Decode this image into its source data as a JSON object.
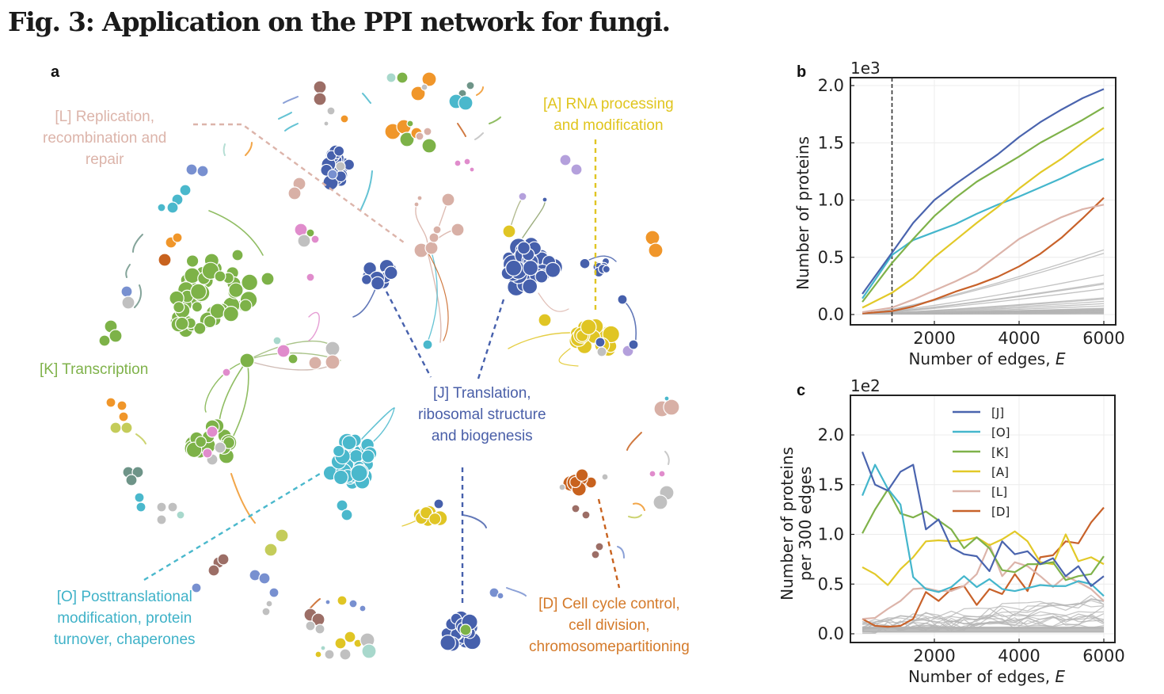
{
  "figure": {
    "title": "Fig. 3: Application on the PPI network for fungi."
  },
  "panel_a": {
    "letter": "a",
    "labels": {
      "L": {
        "lines": [
          "[L] Replication,",
          "recombination and",
          "repair"
        ],
        "color": "#dcb4aa"
      },
      "A": {
        "lines": [
          "[A] RNA processing",
          "and modification"
        ],
        "color": "#e0c51e"
      },
      "K": {
        "lines": [
          "[K] Transcription"
        ],
        "color": "#7fb24a"
      },
      "J": {
        "lines": [
          "[J] Translation,",
          "ribosomal structure",
          "and biogenesis"
        ],
        "color": "#4a5fa8"
      },
      "O": {
        "lines": [
          "[O] Posttranslational",
          "modification, protein",
          "turnover, chaperones"
        ],
        "color": "#3fb2c8"
      },
      "D": {
        "lines": [
          "[D] Cell cycle control,",
          "cell division,",
          "chromosomepartitioning"
        ],
        "color": "#d47a2a"
      }
    }
  },
  "panel_b": {
    "letter": "b"
  },
  "panel_c": {
    "letter": "c"
  },
  "chart_data": [
    {
      "panel": "b",
      "type": "line",
      "title": "",
      "xlabel": "Number of edges, E",
      "ylabel": "Number of proteins",
      "y_multiplier": "1e3",
      "xlim": [
        300,
        6000
      ],
      "ylim": [
        -0.1,
        2.05
      ],
      "xticks": [
        2000,
        4000,
        6000
      ],
      "yticks": [
        0.0,
        0.5,
        1.0,
        1.5,
        2.0
      ],
      "ytick_labels": [
        "0.0",
        "0.5",
        "1.0",
        "1.5",
        "2.0"
      ],
      "grid": true,
      "vline_dashed_x": 1000,
      "x": [
        300,
        1000,
        1500,
        2000,
        2500,
        3000,
        3500,
        4000,
        4500,
        5000,
        5500,
        6000
      ],
      "series": [
        {
          "name": "[J]",
          "color": "#4a64ae",
          "values": [
            0.18,
            0.54,
            0.8,
            1.0,
            1.14,
            1.27,
            1.4,
            1.55,
            1.68,
            1.79,
            1.89,
            1.97
          ]
        },
        {
          "name": "[K]",
          "color": "#7fb24a",
          "values": [
            0.11,
            0.45,
            0.66,
            0.86,
            1.02,
            1.16,
            1.27,
            1.38,
            1.5,
            1.6,
            1.7,
            1.81
          ]
        },
        {
          "name": "[A]",
          "color": "#e2c928",
          "values": [
            0.06,
            0.19,
            0.32,
            0.5,
            0.65,
            0.8,
            0.94,
            1.1,
            1.24,
            1.36,
            1.5,
            1.63
          ]
        },
        {
          "name": "[O]",
          "color": "#44b6cc",
          "values": [
            0.14,
            0.52,
            0.65,
            0.72,
            0.79,
            0.88,
            0.96,
            1.03,
            1.11,
            1.19,
            1.28,
            1.36
          ]
        },
        {
          "name": "[L]",
          "color": "#dcb4aa",
          "values": [
            0.02,
            0.06,
            0.13,
            0.21,
            0.29,
            0.38,
            0.52,
            0.66,
            0.76,
            0.85,
            0.92,
            0.96
          ]
        },
        {
          "name": "[D]",
          "color": "#c8622a",
          "values": [
            0.01,
            0.03,
            0.07,
            0.13,
            0.2,
            0.26,
            0.33,
            0.42,
            0.53,
            0.67,
            0.84,
            1.02
          ]
        }
      ],
      "background_series_color": "#b4b4b4",
      "background_series_endpoints": [
        0.56,
        0.53,
        0.34,
        0.27,
        0.26,
        0.22,
        0.14,
        0.13,
        0.11,
        0.09,
        0.07,
        0.05,
        0.03,
        0.01
      ]
    },
    {
      "panel": "c",
      "type": "line",
      "title": "",
      "xlabel": "Number of edges, E",
      "ylabel": "Number of proteins per 300 edges",
      "y_multiplier": "1e2",
      "xlim": [
        300,
        6000
      ],
      "ylim": [
        -0.1,
        2.4
      ],
      "xticks": [
        2000,
        4000,
        6000
      ],
      "yticks": [
        0.0,
        0.5,
        1.0,
        1.5,
        2.0
      ],
      "ytick_labels": [
        "0.0",
        "0.5",
        "1.0",
        "1.5",
        "2.0"
      ],
      "grid": true,
      "legend": [
        "[J]",
        "[O]",
        "[K]",
        "[A]",
        "[L]",
        "[D]"
      ],
      "legend_position": "upper center",
      "x": [
        300,
        600,
        900,
        1200,
        1500,
        1800,
        2100,
        2400,
        2700,
        3000,
        3300,
        3600,
        3900,
        4200,
        4500,
        4800,
        5100,
        5400,
        5700,
        6000
      ],
      "series": [
        {
          "name": "[J]",
          "color": "#4a64ae",
          "values": [
            1.83,
            1.5,
            1.44,
            1.63,
            1.7,
            1.05,
            1.15,
            0.87,
            0.8,
            0.78,
            0.63,
            0.93,
            0.8,
            0.83,
            0.7,
            0.76,
            0.58,
            0.68,
            0.48,
            0.58
          ]
        },
        {
          "name": "[O]",
          "color": "#44b6cc",
          "values": [
            1.39,
            1.7,
            1.46,
            1.3,
            0.57,
            0.45,
            0.42,
            0.47,
            0.58,
            0.47,
            0.55,
            0.45,
            0.43,
            0.46,
            0.49,
            0.48,
            0.48,
            0.53,
            0.5,
            0.38
          ]
        },
        {
          "name": "[K]",
          "color": "#7fb24a",
          "values": [
            1.01,
            1.25,
            1.45,
            1.21,
            1.17,
            1.23,
            1.14,
            1.05,
            0.86,
            0.97,
            0.86,
            0.64,
            0.62,
            0.7,
            0.7,
            0.72,
            0.54,
            0.58,
            0.6,
            0.78
          ]
        },
        {
          "name": "[A]",
          "color": "#e2c928",
          "values": [
            0.67,
            0.6,
            0.49,
            0.65,
            0.77,
            0.93,
            0.94,
            0.93,
            0.94,
            0.97,
            0.89,
            0.95,
            1.03,
            0.93,
            0.72,
            0.7,
            1.0,
            0.73,
            0.77,
            0.7
          ]
        },
        {
          "name": "[L]",
          "color": "#dcb4aa",
          "values": [
            0.15,
            0.16,
            0.25,
            0.33,
            0.45,
            0.46,
            0.43,
            0.43,
            0.48,
            0.6,
            0.9,
            0.58,
            0.72,
            0.68,
            0.58,
            0.47,
            0.58,
            0.52,
            0.45,
            0.33
          ]
        },
        {
          "name": "[D]",
          "color": "#c8622a",
          "values": [
            0.15,
            0.08,
            0.07,
            0.08,
            0.15,
            0.42,
            0.33,
            0.45,
            0.48,
            0.29,
            0.45,
            0.4,
            0.6,
            0.43,
            0.77,
            0.79,
            0.93,
            0.91,
            1.12,
            1.27
          ]
        }
      ],
      "background_series_color": "#b4b4b4"
    }
  ]
}
